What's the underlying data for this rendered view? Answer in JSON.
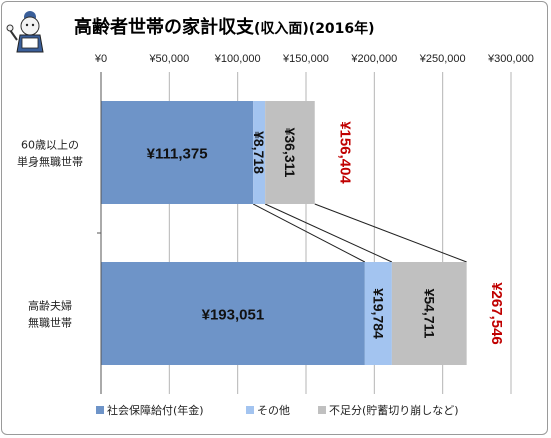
{
  "chart_data": {
    "type": "bar",
    "orientation": "horizontal",
    "stacked": true,
    "title": "高齢者世帯の家計収支",
    "subtitle": "(収入面)(2016年)",
    "xlim": [
      0,
      300000
    ],
    "x_ticks": [
      "¥0",
      "¥50,000",
      "¥100,000",
      "¥150,000",
      "¥200,000",
      "¥250,000",
      "¥300,000"
    ],
    "grid": true,
    "legend_position": "bottom",
    "categories": [
      [
        "60歳以上の",
        "単身無職世帯"
      ],
      [
        "高齢夫婦",
        "無職世帯"
      ]
    ],
    "series": [
      {
        "name": "社会保障給付(年金)",
        "values": [
          111375,
          193051
        ],
        "labels": [
          "¥111,375",
          "¥193,051"
        ],
        "color": "#6e94c8"
      },
      {
        "name": "その他",
        "values": [
          8718,
          19784
        ],
        "labels": [
          "¥8,718",
          "¥19,784"
        ],
        "color": "#a3c4f0"
      },
      {
        "name": "不足分(貯蓄切り崩しなど)",
        "values": [
          36311,
          54711
        ],
        "labels": [
          "¥36,311",
          "¥54,711"
        ],
        "color": "#c0c0c0"
      }
    ],
    "totals": [
      "¥156,404",
      "¥267,546"
    ],
    "total_color": "#c00000"
  }
}
